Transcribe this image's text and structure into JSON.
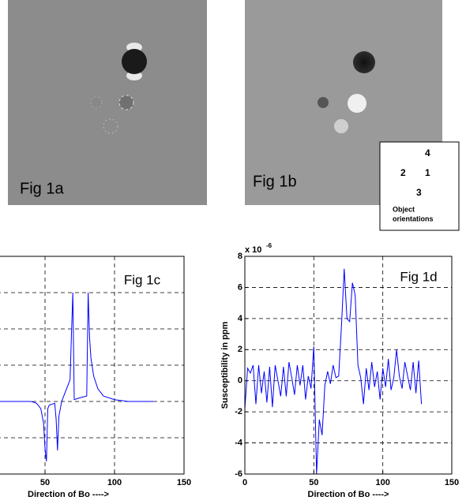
{
  "images": [
    {
      "label": "Fig 1a"
    },
    {
      "label": "Fig 1b",
      "inset": {
        "numbers": [
          "4",
          "2",
          "1",
          "3"
        ],
        "caption": [
          "Object",
          "orientations"
        ]
      }
    }
  ],
  "chart_data": [
    {
      "type": "line",
      "title": "Fig 1c",
      "xlabel": "Direction of Bo ---->",
      "x": [
        1,
        40,
        44,
        47,
        49,
        50,
        51,
        52,
        53,
        57,
        58,
        59,
        60,
        62,
        64,
        66,
        68,
        69,
        70,
        71,
        75,
        80,
        81,
        82,
        83,
        85,
        88,
        92,
        100,
        110,
        128
      ],
      "series": [
        {
          "color": "#0000ff",
          "values": [
            0,
            0,
            -0.05,
            -0.2,
            -0.6,
            -1.3,
            -1.65,
            -0.2,
            -0.1,
            -0.05,
            -0.5,
            -1.35,
            -0.4,
            0,
            0.2,
            0.4,
            0.6,
            1.8,
            3.0,
            0.05,
            0.1,
            0.15,
            3.0,
            1.8,
            1.2,
            0.7,
            0.35,
            0.15,
            0.05,
            0,
            0
          ]
        }
      ],
      "xlim": [
        0,
        150
      ],
      "ylim": [
        -2,
        4
      ],
      "xticks": [
        50,
        100,
        150
      ],
      "yticks": [
        -1,
        0,
        1,
        2,
        3
      ],
      "grid": true
    },
    {
      "type": "line",
      "title": "Fig 1d",
      "xlabel": "Direction of Bo ---->",
      "ylabel": "Susceptibility in ppm",
      "axis_exponent": {
        "base": "x 10",
        "power": "-6"
      },
      "x": [
        0,
        2,
        4,
        6,
        8,
        10,
        12,
        14,
        16,
        18,
        20,
        22,
        24,
        26,
        28,
        30,
        32,
        34,
        36,
        38,
        40,
        42,
        44,
        46,
        48,
        50,
        52,
        54,
        56,
        58,
        60,
        62,
        64,
        66,
        68,
        70,
        72,
        74,
        76,
        78,
        80,
        82,
        84,
        86,
        88,
        90,
        92,
        94,
        96,
        98,
        100,
        102,
        104,
        106,
        108,
        110,
        112,
        114,
        116,
        118,
        120,
        122,
        124,
        126,
        128
      ],
      "series": [
        {
          "color": "#0000ff",
          "values": [
            -1.8,
            0.8,
            0.5,
            1.0,
            -1.5,
            1.0,
            -0.8,
            0.6,
            -1.4,
            0.9,
            -1.7,
            1.0,
            0,
            -1,
            0.9,
            -1.0,
            1.2,
            0.2,
            -0.9,
            1.0,
            -0.3,
            1.0,
            -1.2,
            0.3,
            -0.5,
            2.2,
            -6,
            -2.5,
            -3.5,
            -0.3,
            0.6,
            -0.2,
            1.0,
            0.2,
            0.3,
            3.5,
            7.2,
            4,
            3.8,
            6.3,
            5.5,
            1,
            0.2,
            -1.5,
            0.8,
            -0.6,
            1.2,
            -0.4,
            0.6,
            -1.2,
            0.8,
            -0.4,
            1.4,
            -0.6,
            0.2,
            2,
            0.3,
            -0.5,
            1.2,
            0.3,
            -0.6,
            1.2,
            -0.8,
            1.3,
            -1.5
          ]
        }
      ],
      "xlim": [
        0,
        150
      ],
      "ylim": [
        -6,
        8
      ],
      "xticks": [
        0,
        50,
        100,
        150
      ],
      "yticks": [
        -6,
        -4,
        -2,
        0,
        2,
        4,
        6,
        8
      ],
      "grid": true
    }
  ]
}
